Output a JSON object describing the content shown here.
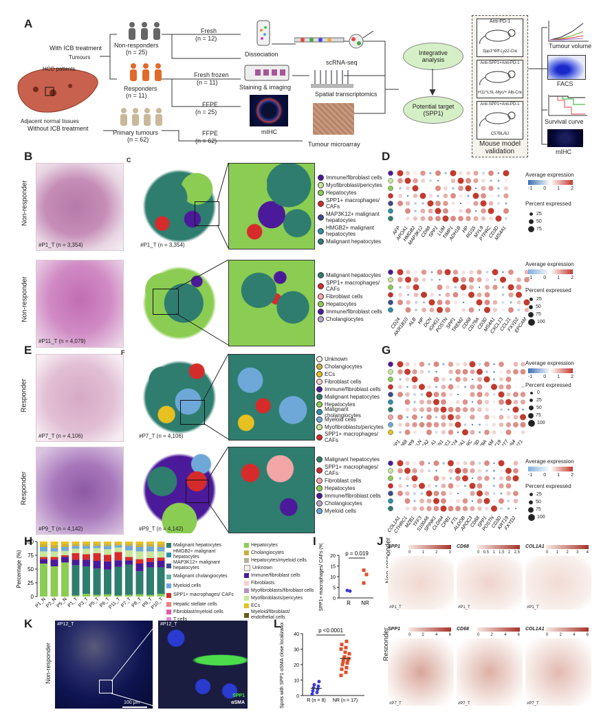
{
  "colors": {
    "spp1": "#d62b2b",
    "malig": "#2e7d6e",
    "hep": "#8bcd52",
    "immune": "#4b1a9a",
    "myo": "#c7e79a",
    "chol": "#f4a6a6",
    "ecs": "#e8c020",
    "myeloid": "#6ea8d8",
    "unknown": "#f5f0e6",
    "ieg": "#2c8fa8"
  },
  "panelA": {
    "label": "A",
    "with_icb": "With ICB treatment",
    "tumours": "Tumours",
    "hcc_patients": "HCC patients",
    "adjacent": "Adjacent normal tissues",
    "without_icb": "Without ICB treatment",
    "nonresp": "Non-responders",
    "nonresp_n": "(n = 25)",
    "resp": "Responders",
    "resp_n": "(n = 11)",
    "primary": "Primary tumours",
    "primary_n": "(n = 62)",
    "fresh": "Fresh",
    "fresh_n": "(n = 12)",
    "fresh_frozen": "Fresh frozen",
    "fresh_frozen_n": "(n = 11)",
    "ffpe1": "FFPE",
    "ffpe1_n": "(n = 25)",
    "ffpe2": "FFPE",
    "ffpe2_n": "(n = 62)",
    "dissociation": "Dissociation",
    "staining": "Staining & imaging",
    "mihc": "mIHC",
    "tma": "Tumour microarray",
    "scrna": "scRNA-seq",
    "spatial": "Spatial transcriptomics",
    "integrative": "Integrative analysis",
    "potential": "Potential target (SPP1)",
    "mouse_validation": "Mouse model validation",
    "m1_top": "Anti-PD-1",
    "m1_bot": "Spp1^fl/fl Lyz2-Cre",
    "m2_top": "Anti-SPP1+Anti-PD-1",
    "m2_bot": "H11^LSL-Myc/+ Alb-Cre",
    "m3_top": "Anti-SPP1+Anti-PD-1",
    "m3_bot": "C57BL/6J",
    "tumour_volume": "Tumour volume",
    "facs": "FACS",
    "survival": "Survival curve",
    "mihc_out": "mIHC"
  },
  "panelB": {
    "label": "B",
    "nr": "Non-responder",
    "s1": "#P1_T (n = 3,354)",
    "s2": "#P11_T (n = 4,079)"
  },
  "panelC": {
    "label": "C",
    "s1": "#P1_T (n = 3,354)",
    "leg1": [
      "Immune/fibroblast cells",
      "Myofibroblast/pericytes",
      "Hepatocytes",
      "SPP1+ macrophages/ CAFs",
      "MAP3K12+ malignant hepatocytes",
      "HMGB2+ malignant hepatocytes",
      "Malignant hepatocytes"
    ],
    "leg2": [
      "Malignant hepatocytes",
      "SPP1+ macrophages/ CAFs",
      "Fibroblast cells",
      "Hepatocytes",
      "Immune/fibroblast cells",
      "Cholangiocytes"
    ]
  },
  "panelD": {
    "label": "D",
    "genes1": [
      "AFP",
      "APOA1",
      "HMGB2",
      "MAP3K12",
      "CD68",
      "SPP1",
      "LUM",
      "TIMP1",
      "ADH1B",
      "HP",
      "RGS5",
      "MYL9",
      "PTPRC",
      "CD3D",
      "MS4A1"
    ],
    "genes2": [
      "CD24",
      "AKR1B10",
      "ALB",
      "HP",
      "DCN",
      "IGHG1",
      "POSTN",
      "SPP1",
      "TREM2",
      "CD68",
      "CD79A",
      "CD3D",
      "MS4A1",
      "CXCL13",
      "CCL21",
      "FXYD2",
      "EPCAM"
    ],
    "avg_title": "Average expression",
    "pct_title": "Percent expressed",
    "avg_ticks1": [
      "-1",
      "0",
      "1",
      "2"
    ],
    "pct1": [
      "25",
      "50",
      "75"
    ],
    "avg_ticks2": [
      "-1",
      "0",
      "1",
      "2"
    ],
    "pct2": [
      "25",
      "50",
      "75",
      "100"
    ]
  },
  "panelE": {
    "label": "E",
    "r": "Responder",
    "s1": "#P7_T (n = 4,106)",
    "s2": "#P9_T (n = 4,142)"
  },
  "panelF": {
    "label": "F",
    "s1": "#P7_T (n = 4,106)",
    "s2": "#P9_T (n = 4,142)",
    "leg1": [
      "Unknown",
      "Cholangiocytes",
      "ECs",
      "Fibroblast cells",
      "Immune/fibroblast cells",
      "Malignant hepatocytes",
      "Hepatocytes",
      "Malignant cholangiocytes",
      "Myeloid cells",
      "Myofibroblasts/pericytes",
      "SPP1+ macrophages/ CAFs"
    ],
    "leg2": [
      "Malignant hepatocytes",
      "SPP1+ macrophages/ CAFs",
      "Fibroblast cells",
      "Hepatocytes",
      "Immune/fibroblast cells",
      "Cholangiocytes",
      "Myeloid cells"
    ]
  },
  "panelG": {
    "label": "G",
    "genes1": [
      "SPP1",
      "CD68",
      "MMP9",
      "TAGLN",
      "ACTA2",
      "COL1A1",
      "FN1",
      "CTHRC1",
      "CD274",
      "APOA1",
      "PTPRC",
      "CD3D",
      "CD79A",
      "EPCAM",
      "KRT19",
      "KRT7",
      "CLDN4",
      "MALAT1"
    ],
    "genes2": [
      "COL1A1",
      "CTHRC1",
      "MZB1",
      "TFF3",
      "S100A6",
      "SPINK1",
      "CLDN4",
      "CPB1",
      "FTL",
      "ALDOB",
      "APOC3",
      "CD68",
      "SPP1",
      "POSTN",
      "CD3D",
      "KRT19",
      "FXYD2"
    ],
    "avg_title": "Average expression",
    "pct_title": "Percent expressed",
    "avg_ticks1": [
      "-1",
      "0",
      "1",
      "2"
    ],
    "pct1": [
      "0",
      "25",
      "50",
      "75",
      "100"
    ],
    "avg_ticks2": [
      "-1",
      "0",
      "1",
      "2"
    ],
    "pct2": [
      "25",
      "50",
      "75",
      "100"
    ]
  },
  "panelH": {
    "label": "H",
    "ylabel": "Percentage (%)",
    "yticks": [
      "0",
      "25",
      "50",
      "75",
      "100"
    ],
    "samples": [
      "P1_N",
      "P2_N",
      "P5_N",
      "P1_T",
      "P3_T",
      "P5_T",
      "P6_T",
      "P11_T",
      "P7_T",
      "P8_T",
      "P9_T",
      "P10_T"
    ],
    "legendA": [
      "Malignant hepatocytes",
      "HMGB2+ malignant hepatocytes",
      "MAP3K12+ malignant hepatocytes",
      "Malignant cholangiocytes",
      "Myeloid cells",
      "SPP1+ macrophages/ CAFs",
      "Hepatic stellate cells",
      "Fibroblast/myeloid cells",
      "T cells"
    ],
    "legendB": [
      "Hepatocytes",
      "Cholangiocytes",
      "Hepatocytes/myeloid cells",
      "Unknown",
      "Immune/fibroblast cells",
      "Fibroblasts",
      "Myofibroblasts/fibroblast cells",
      "Myofibroblasts/pericytes",
      "ECs",
      "Myeloid/fibroblast/ endothelial cells"
    ]
  },
  "panelI": {
    "label": "I",
    "p": "p = 0.019",
    "ylabel": "SPP1+ macrophages/ CAFs (%)",
    "yticks": [
      "0",
      "5",
      "10",
      "15",
      "20"
    ],
    "groups": [
      "R",
      "NR"
    ]
  },
  "panelJ": {
    "label": "J",
    "nr": "Non-responder",
    "r": "Responder",
    "genes": [
      "SPP1",
      "CD68",
      "COL1A1"
    ],
    "ticks_nr": [
      [
        "0",
        "1",
        "2",
        "3"
      ],
      [
        "0",
        "0.5",
        "1",
        "1.5",
        "2",
        "2.5"
      ],
      [
        "0",
        "1",
        "2",
        "3",
        "4"
      ]
    ],
    "ticks_r": [
      [
        "0",
        "2",
        "4",
        "6"
      ],
      [
        "0",
        "2",
        "4",
        "6"
      ],
      [
        "0",
        "2",
        "4",
        "6"
      ]
    ],
    "sample_nr": "#P1_T",
    "sample_r": "#P7_T"
  },
  "panelK": {
    "label": "K",
    "sample": "#P12_T",
    "nr": "Non-responder",
    "scale": "100 μm",
    "spp1": "SPP1",
    "asma": "αSMA"
  },
  "panelL": {
    "label": "L",
    "p": "p <0.0001",
    "ylabel": "Spots with SPP1 αSMA close localization",
    "yticks": [
      "0",
      "10",
      "20",
      "30",
      "40"
    ],
    "groups": [
      "R (n = 8)",
      "NR (n = 17)"
    ]
  },
  "chart_data": [
    {
      "type": "bar",
      "title": "",
      "xlabel": "",
      "ylabel": "Percentage (%)",
      "ylim": [
        0,
        100
      ],
      "categories": [
        "P1_N",
        "P2_N",
        "P5_N",
        "P1_T",
        "P3_T",
        "P5_T",
        "P6_T",
        "P11_T",
        "P7_T",
        "P8_T",
        "P9_T",
        "P10_T"
      ],
      "series": [
        {
          "name": "Hepatocytes",
          "values": [
            60,
            55,
            62,
            2,
            5,
            3,
            4,
            2,
            3,
            4,
            3,
            5
          ]
        },
        {
          "name": "Malignant hepatocytes",
          "values": [
            0,
            0,
            0,
            55,
            50,
            48,
            45,
            52,
            55,
            42,
            50,
            48
          ]
        },
        {
          "name": "Immune/fibroblast cells",
          "values": [
            8,
            12,
            10,
            10,
            12,
            14,
            15,
            12,
            8,
            14,
            10,
            12
          ]
        },
        {
          "name": "SPP1+ macrophages/ CAFs",
          "values": [
            4,
            5,
            3,
            12,
            10,
            14,
            12,
            15,
            6,
            8,
            7,
            6
          ]
        },
        {
          "name": "Myofibroblasts/pericytes",
          "values": [
            10,
            10,
            8,
            8,
            10,
            9,
            10,
            8,
            12,
            14,
            12,
            11
          ]
        },
        {
          "name": "Myeloid cells",
          "values": [
            8,
            6,
            7,
            5,
            5,
            4,
            6,
            4,
            8,
            8,
            9,
            8
          ]
        },
        {
          "name": "Cholangiocytes",
          "values": [
            5,
            6,
            5,
            4,
            4,
            4,
            4,
            3,
            4,
            5,
            5,
            5
          ]
        },
        {
          "name": "ECs",
          "values": [
            5,
            6,
            5,
            4,
            4,
            4,
            4,
            4,
            4,
            5,
            4,
            5
          ]
        }
      ]
    },
    {
      "type": "scatter",
      "title": "",
      "xlabel": "",
      "ylabel": "SPP1+ macrophages/ CAFs (%)",
      "ylim": [
        0,
        20
      ],
      "x": [
        "R",
        "R",
        "NR",
        "NR",
        "NR"
      ],
      "y": [
        3.5,
        3.2,
        7,
        11,
        13
      ]
    },
    {
      "type": "scatter",
      "title": "",
      "xlabel": "",
      "ylabel": "Spots with SPP1 αSMA close localization",
      "ylim": [
        0,
        40
      ],
      "series": [
        {
          "name": "R (n = 8)",
          "values": [
            1,
            2,
            3,
            4,
            5,
            6,
            7,
            9
          ]
        },
        {
          "name": "NR (n = 17)",
          "values": [
            13,
            15,
            17,
            18,
            20,
            21,
            22,
            23,
            24,
            24,
            25,
            27,
            28,
            30,
            31,
            33,
            35
          ]
        }
      ]
    }
  ]
}
